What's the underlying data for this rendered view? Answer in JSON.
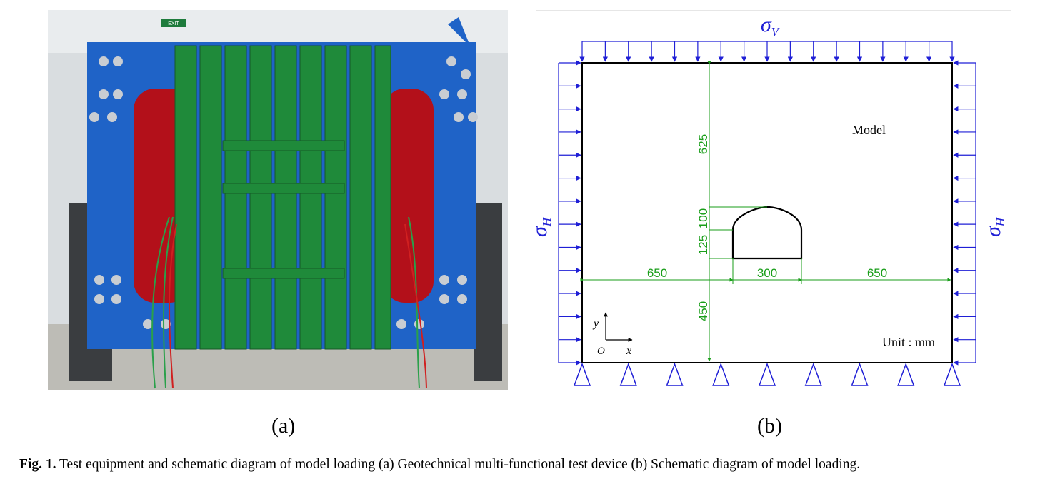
{
  "panel_a": {
    "label": "(a)",
    "photo_alt": "Geotechnical multi-functional test device photograph",
    "exit_sign_text": "EXIT"
  },
  "panel_b": {
    "label": "(b)",
    "sigma_v": "σ",
    "sigma_v_sub": "V",
    "sigma_h": "σ",
    "sigma_h_sub": "H",
    "model_label": "Model",
    "unit_label": "Unit : mm",
    "dim_top": "625",
    "dim_arch": "100",
    "dim_wall": "125",
    "dim_bottom": "450",
    "dim_left": "650",
    "dim_tunnel_width": "300",
    "dim_right": "650",
    "axis_y": "y",
    "axis_x": "x",
    "axis_origin": "O",
    "colors": {
      "load": "#1f1fd6",
      "dimension": "#1a9e1a",
      "outline": "#000000"
    }
  },
  "caption": {
    "fig_label": "Fig. 1.",
    "text": " Test equipment and schematic diagram of model loading (a) Geotechnical multi-functional test device (b) Schematic diagram of model loading."
  }
}
